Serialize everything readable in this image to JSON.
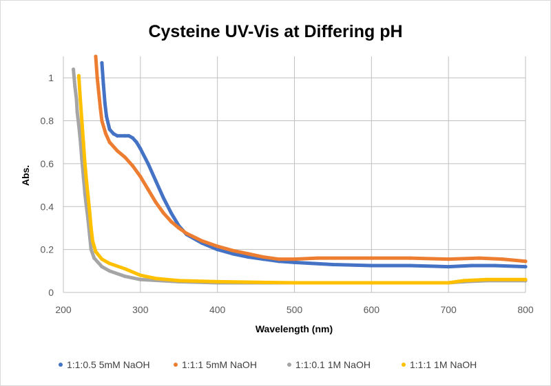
{
  "chart_data": {
    "type": "scatter",
    "title": "Cysteine UV-Vis at Differing pH",
    "xlabel": "Wavelength (nm)",
    "ylabel": "Abs.",
    "xlim": [
      200,
      800
    ],
    "ylim": [
      0,
      1.1
    ],
    "xticks": [
      200,
      300,
      400,
      500,
      600,
      700,
      800
    ],
    "yticks": [
      0,
      0.2,
      0.4,
      0.6,
      0.8,
      1
    ],
    "grid": true,
    "legend": "bottom",
    "series": [
      {
        "name": "1:1:0.5 5mM NaOH",
        "color": "#4472C4",
        "x": [
          250,
          252,
          254,
          256,
          260,
          265,
          270,
          280,
          285,
          290,
          295,
          300,
          310,
          320,
          330,
          340,
          350,
          360,
          380,
          400,
          420,
          440,
          460,
          480,
          500,
          550,
          600,
          650,
          700,
          730,
          760,
          800
        ],
        "y": [
          1.07,
          0.97,
          0.88,
          0.82,
          0.76,
          0.74,
          0.73,
          0.73,
          0.73,
          0.72,
          0.7,
          0.67,
          0.6,
          0.52,
          0.44,
          0.37,
          0.31,
          0.27,
          0.23,
          0.2,
          0.18,
          0.165,
          0.155,
          0.145,
          0.14,
          0.13,
          0.125,
          0.125,
          0.12,
          0.125,
          0.125,
          0.12
        ]
      },
      {
        "name": "1:1:1 5mM NaOH",
        "color": "#ED7D31",
        "x": [
          242,
          244,
          246,
          248,
          250,
          255,
          260,
          270,
          280,
          290,
          300,
          310,
          320,
          330,
          340,
          350,
          360,
          380,
          400,
          420,
          440,
          460,
          480,
          500,
          530,
          600,
          650,
          700,
          740,
          770,
          800
        ],
        "y": [
          1.1,
          1.0,
          0.93,
          0.86,
          0.8,
          0.74,
          0.7,
          0.66,
          0.63,
          0.59,
          0.54,
          0.48,
          0.42,
          0.37,
          0.33,
          0.3,
          0.275,
          0.24,
          0.215,
          0.195,
          0.18,
          0.165,
          0.155,
          0.155,
          0.16,
          0.16,
          0.16,
          0.155,
          0.16,
          0.155,
          0.145
        ]
      },
      {
        "name": "1:1:0.1 1M NaOH",
        "color": "#A5A5A5",
        "x": [
          213,
          215,
          217,
          218,
          220,
          222,
          224,
          226,
          228,
          230,
          232,
          234,
          236,
          240,
          250,
          260,
          280,
          300,
          350,
          400,
          500,
          600,
          700,
          720,
          750,
          800
        ],
        "y": [
          1.04,
          0.96,
          0.9,
          0.84,
          0.78,
          0.71,
          0.62,
          0.54,
          0.46,
          0.4,
          0.34,
          0.27,
          0.2,
          0.16,
          0.12,
          0.1,
          0.075,
          0.06,
          0.05,
          0.045,
          0.045,
          0.045,
          0.045,
          0.05,
          0.055,
          0.055
        ]
      },
      {
        "name": "1:1:1 1M NaOH",
        "color": "#FFC000",
        "x": [
          220,
          222,
          224,
          226,
          228,
          230,
          232,
          234,
          236,
          238,
          242,
          250,
          260,
          280,
          300,
          320,
          350,
          400,
          500,
          600,
          700,
          720,
          750,
          800
        ],
        "y": [
          1.01,
          0.9,
          0.8,
          0.7,
          0.6,
          0.52,
          0.45,
          0.38,
          0.3,
          0.24,
          0.19,
          0.155,
          0.135,
          0.11,
          0.08,
          0.065,
          0.055,
          0.05,
          0.045,
          0.045,
          0.045,
          0.055,
          0.06,
          0.06
        ]
      }
    ]
  }
}
